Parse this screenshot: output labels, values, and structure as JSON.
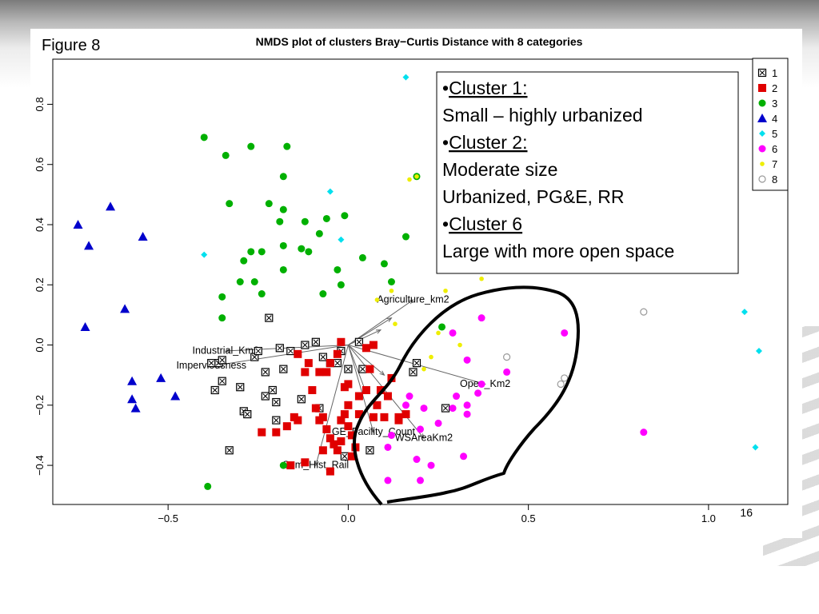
{
  "figure_label": "Figure 8",
  "page_number": "16",
  "chart_data": {
    "type": "scatter",
    "title": "NMDS plot of clusters Bray−Curtis Distance with 8 categories",
    "xlabel": "",
    "ylabel": "",
    "xlim": [
      -0.82,
      1.22
    ],
    "ylim": [
      -0.53,
      0.95
    ],
    "x_ticks": [
      -0.5,
      0.0,
      0.5,
      1.0
    ],
    "x_tick_labels": [
      "−0.5",
      "0.0",
      "0.5",
      "1.0"
    ],
    "y_ticks": [
      -0.4,
      -0.2,
      0.0,
      0.2,
      0.4,
      0.6,
      0.8
    ],
    "y_tick_labels": [
      "−0.4",
      "−0.2",
      "0.0",
      "0.2",
      "0.4",
      "0.6",
      "0.8"
    ],
    "grid": false,
    "legend_position": "top-right",
    "series": [
      {
        "name": "1",
        "marker": "boxed-x",
        "color": "#000000",
        "points": [
          [
            -0.22,
            0.09
          ],
          [
            -0.36,
            -0.06
          ],
          [
            -0.38,
            -0.06
          ],
          [
            -0.35,
            -0.12
          ],
          [
            -0.37,
            -0.15
          ],
          [
            -0.3,
            -0.14
          ],
          [
            -0.29,
            -0.22
          ],
          [
            -0.28,
            -0.23
          ],
          [
            -0.26,
            -0.04
          ],
          [
            -0.25,
            -0.02
          ],
          [
            -0.23,
            -0.09
          ],
          [
            -0.23,
            -0.17
          ],
          [
            -0.21,
            -0.15
          ],
          [
            -0.2,
            -0.19
          ],
          [
            -0.2,
            -0.25
          ],
          [
            -0.19,
            -0.01
          ],
          [
            -0.18,
            -0.08
          ],
          [
            -0.16,
            -0.02
          ],
          [
            -0.13,
            -0.18
          ],
          [
            -0.12,
            0.0
          ],
          [
            -0.09,
            0.01
          ],
          [
            -0.08,
            -0.21
          ],
          [
            -0.07,
            -0.04
          ],
          [
            -0.05,
            -0.06
          ],
          [
            -0.03,
            -0.06
          ],
          [
            -0.02,
            -0.02
          ],
          [
            -0.01,
            -0.37
          ],
          [
            0.0,
            -0.08
          ],
          [
            0.03,
            0.01
          ],
          [
            0.04,
            -0.08
          ],
          [
            0.06,
            -0.35
          ],
          [
            0.19,
            -0.06
          ],
          [
            0.18,
            -0.09
          ],
          [
            0.27,
            -0.21
          ],
          [
            -0.33,
            -0.35
          ],
          [
            -0.35,
            -0.05
          ]
        ]
      },
      {
        "name": "2",
        "marker": "square",
        "color": "#e00000",
        "points": [
          [
            -0.02,
            0.01
          ],
          [
            -0.03,
            -0.03
          ],
          [
            -0.05,
            -0.06
          ],
          [
            -0.06,
            -0.09
          ],
          [
            -0.08,
            -0.09
          ],
          [
            -0.12,
            -0.09
          ],
          [
            -0.14,
            -0.25
          ],
          [
            -0.15,
            -0.24
          ],
          [
            -0.17,
            -0.27
          ],
          [
            -0.2,
            -0.29
          ],
          [
            -0.24,
            -0.29
          ],
          [
            -0.1,
            -0.15
          ],
          [
            -0.09,
            -0.21
          ],
          [
            -0.08,
            -0.25
          ],
          [
            -0.07,
            -0.24
          ],
          [
            -0.06,
            -0.28
          ],
          [
            -0.05,
            -0.31
          ],
          [
            -0.04,
            -0.33
          ],
          [
            -0.03,
            -0.35
          ],
          [
            -0.02,
            -0.25
          ],
          [
            -0.01,
            -0.14
          ],
          [
            -0.01,
            -0.23
          ],
          [
            0.0,
            -0.2
          ],
          [
            0.0,
            -0.27
          ],
          [
            0.01,
            -0.3
          ],
          [
            0.01,
            -0.37
          ],
          [
            0.02,
            -0.34
          ],
          [
            0.03,
            -0.23
          ],
          [
            0.03,
            -0.17
          ],
          [
            0.05,
            -0.01
          ],
          [
            0.05,
            -0.15
          ],
          [
            0.06,
            -0.08
          ],
          [
            0.07,
            -0.24
          ],
          [
            0.08,
            -0.2
          ],
          [
            0.09,
            -0.15
          ],
          [
            0.1,
            -0.24
          ],
          [
            0.11,
            -0.17
          ],
          [
            0.12,
            -0.11
          ],
          [
            0.14,
            -0.24
          ],
          [
            0.16,
            -0.23
          ],
          [
            -0.05,
            -0.42
          ],
          [
            -0.12,
            -0.39
          ],
          [
            -0.16,
            -0.4
          ],
          [
            -0.07,
            -0.35
          ],
          [
            0.0,
            -0.13
          ],
          [
            -0.11,
            -0.06
          ],
          [
            -0.14,
            -0.03
          ],
          [
            -0.02,
            -0.32
          ],
          [
            0.07,
            0.0
          ],
          [
            0.14,
            -0.25
          ]
        ]
      },
      {
        "name": "3",
        "marker": "circle",
        "color": "#00b000",
        "points": [
          [
            -0.4,
            0.69
          ],
          [
            -0.34,
            0.63
          ],
          [
            -0.27,
            0.66
          ],
          [
            -0.17,
            0.66
          ],
          [
            -0.18,
            0.56
          ],
          [
            -0.33,
            0.47
          ],
          [
            -0.22,
            0.47
          ],
          [
            -0.18,
            0.45
          ],
          [
            -0.12,
            0.41
          ],
          [
            -0.19,
            0.41
          ],
          [
            -0.06,
            0.42
          ],
          [
            -0.01,
            0.43
          ],
          [
            -0.27,
            0.31
          ],
          [
            -0.29,
            0.28
          ],
          [
            -0.24,
            0.31
          ],
          [
            -0.18,
            0.33
          ],
          [
            -0.13,
            0.32
          ],
          [
            -0.11,
            0.31
          ],
          [
            -0.08,
            0.37
          ],
          [
            -0.3,
            0.21
          ],
          [
            -0.26,
            0.21
          ],
          [
            -0.24,
            0.17
          ],
          [
            -0.18,
            0.25
          ],
          [
            -0.03,
            0.25
          ],
          [
            -0.02,
            0.2
          ],
          [
            0.04,
            0.29
          ],
          [
            0.1,
            0.27
          ],
          [
            0.12,
            0.21
          ],
          [
            -0.07,
            0.17
          ],
          [
            -0.35,
            0.16
          ],
          [
            -0.35,
            0.09
          ],
          [
            0.26,
            0.06
          ],
          [
            -0.18,
            -0.4
          ],
          [
            -0.39,
            -0.47
          ],
          [
            0.16,
            0.36
          ],
          [
            0.19,
            0.56
          ]
        ]
      },
      {
        "name": "4",
        "marker": "triangle",
        "color": "#0000cc",
        "points": [
          [
            -0.75,
            0.4
          ],
          [
            -0.72,
            0.33
          ],
          [
            -0.66,
            0.46
          ],
          [
            -0.57,
            0.36
          ],
          [
            -0.62,
            0.12
          ],
          [
            -0.73,
            0.06
          ],
          [
            -0.6,
            -0.12
          ],
          [
            -0.6,
            -0.18
          ],
          [
            -0.59,
            -0.21
          ],
          [
            -0.52,
            -0.11
          ],
          [
            -0.48,
            -0.17
          ]
        ]
      },
      {
        "name": "5",
        "marker": "diamond",
        "color": "#00e0ee",
        "points": [
          [
            0.16,
            0.89
          ],
          [
            -0.05,
            0.51
          ],
          [
            -0.02,
            0.35
          ],
          [
            -0.4,
            0.3
          ],
          [
            1.1,
            0.11
          ],
          [
            1.14,
            -0.02
          ],
          [
            1.13,
            -0.34
          ]
        ]
      },
      {
        "name": "6",
        "marker": "circle",
        "color": "#ff00ff",
        "points": [
          [
            0.29,
            0.04
          ],
          [
            0.37,
            0.09
          ],
          [
            0.6,
            0.04
          ],
          [
            0.33,
            -0.05
          ],
          [
            0.44,
            -0.09
          ],
          [
            0.37,
            -0.13
          ],
          [
            0.36,
            -0.16
          ],
          [
            0.3,
            -0.17
          ],
          [
            0.33,
            -0.2
          ],
          [
            0.33,
            -0.23
          ],
          [
            0.17,
            -0.17
          ],
          [
            0.16,
            -0.2
          ],
          [
            0.21,
            -0.21
          ],
          [
            0.25,
            -0.26
          ],
          [
            0.29,
            -0.21
          ],
          [
            0.2,
            -0.28
          ],
          [
            0.11,
            -0.34
          ],
          [
            0.19,
            -0.38
          ],
          [
            0.23,
            -0.4
          ],
          [
            0.32,
            -0.37
          ],
          [
            0.11,
            -0.45
          ],
          [
            0.2,
            -0.45
          ],
          [
            0.82,
            -0.29
          ],
          [
            0.12,
            -0.3
          ]
        ]
      },
      {
        "name": "7",
        "marker": "small-dot",
        "color": "#eeee00",
        "points": [
          [
            0.17,
            0.55
          ],
          [
            0.19,
            0.56
          ],
          [
            0.37,
            0.22
          ],
          [
            0.27,
            0.18
          ],
          [
            0.25,
            0.04
          ],
          [
            0.31,
            0.0
          ],
          [
            0.23,
            -0.04
          ],
          [
            0.21,
            -0.08
          ],
          [
            0.08,
            0.15
          ],
          [
            0.12,
            0.18
          ],
          [
            0.13,
            0.07
          ]
        ]
      },
      {
        "name": "8",
        "marker": "open-circle",
        "color": "#999999",
        "points": [
          [
            0.82,
            0.11
          ],
          [
            0.44,
            -0.04
          ],
          [
            0.6,
            -0.11
          ],
          [
            0.59,
            -0.13
          ]
        ]
      }
    ],
    "vectors": [
      {
        "label": "Agriculture_km2",
        "x": 0.18,
        "y": 0.15
      },
      {
        "label": "Industrial_Km2",
        "x": -0.34,
        "y": -0.02
      },
      {
        "label": "Imperviousness",
        "x": -0.38,
        "y": -0.07
      },
      {
        "label": "Open_Km2",
        "x": 0.38,
        "y": -0.13
      },
      {
        "label": "GE_Facility_Count",
        "x": 0.07,
        "y": -0.29
      },
      {
        "label": "WSAreaKm2",
        "x": 0.21,
        "y": -0.31
      },
      {
        "label": "Sum_Hist_Rail",
        "x": -0.09,
        "y": -0.4
      },
      {
        "label": "",
        "x": 0.12,
        "y": 0.09
      },
      {
        "label": "",
        "x": 0.09,
        "y": 0.05
      },
      {
        "label": "",
        "x": 0.05,
        "y": -0.16
      },
      {
        "label": "",
        "x": 0.1,
        "y": -0.1
      }
    ],
    "annotation_box": {
      "lines": [
        {
          "bullet": "•",
          "text": "Cluster 1:",
          "underline": true
        },
        {
          "bullet": "",
          "text": "Small – highly urbanized",
          "underline": false
        },
        {
          "bullet": "•",
          "text": "Cluster 2:",
          "underline": true
        },
        {
          "bullet": "",
          "text": "Moderate size",
          "underline": false
        },
        {
          "bullet": "",
          "text": "Urbanized, PG&E, RR",
          "underline": false
        },
        {
          "bullet": "•",
          "text": "Cluster 6",
          "underline": true
        },
        {
          "bullet": "",
          "text": "Large with more open space",
          "underline": false
        }
      ]
    }
  }
}
